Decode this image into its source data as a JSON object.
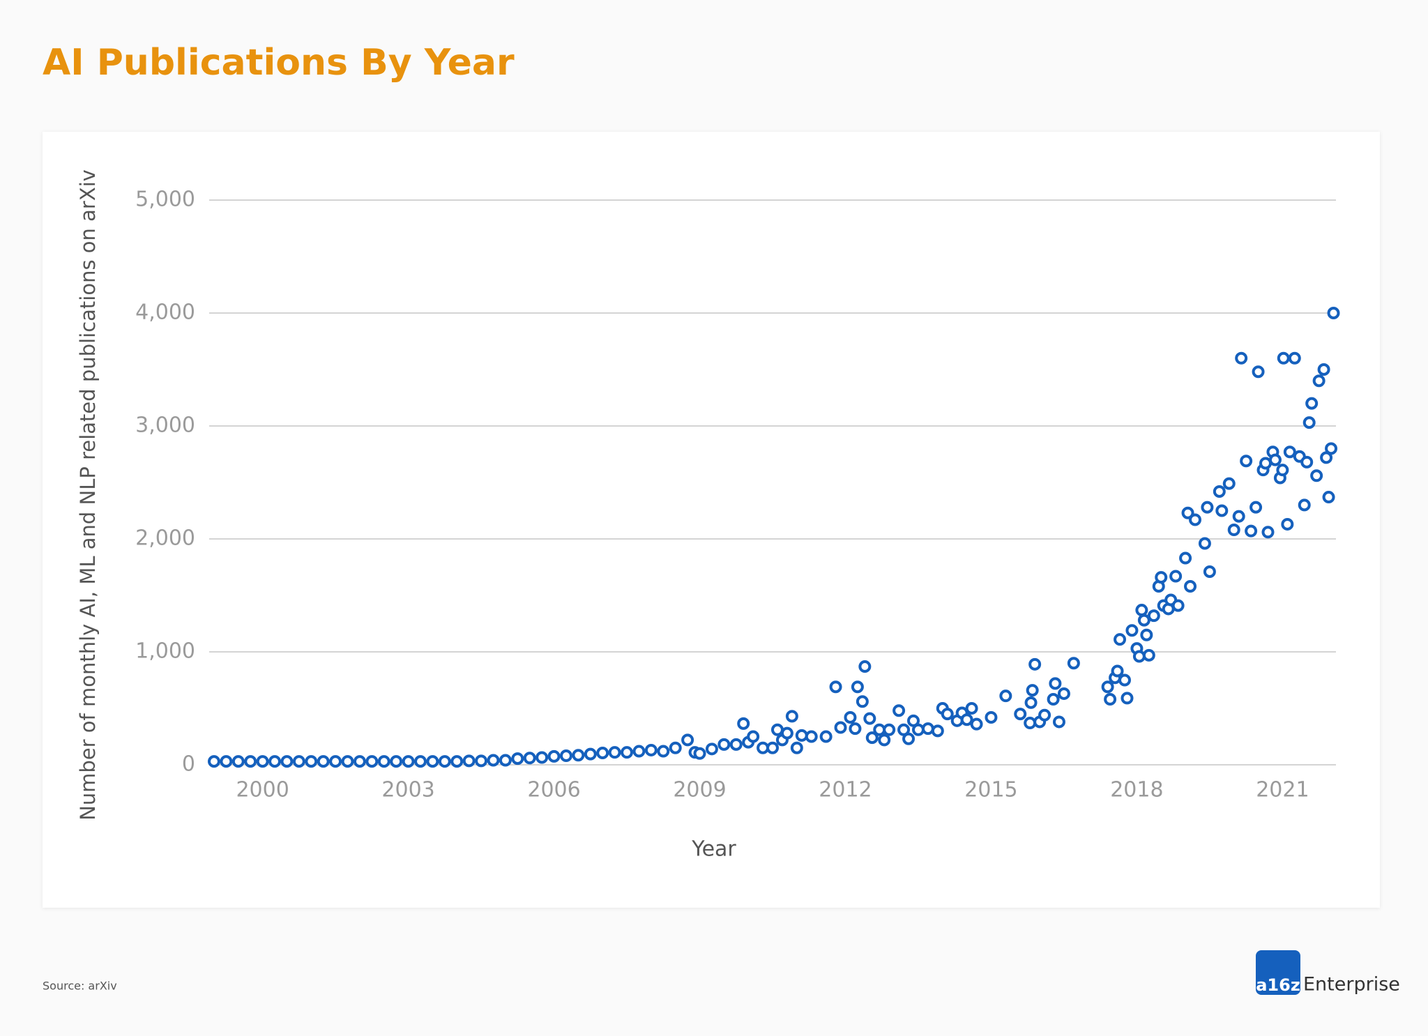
{
  "chart_data": {
    "type": "scatter",
    "title": "AI Publications By Year",
    "x_label": "Year",
    "y_label": "Number of monthly AI, ML and NLP related publications on arXiv",
    "color": "#1560bd",
    "grid": true,
    "xlim": [
      1998.9,
      2022.1
    ],
    "xticks": [
      2000,
      2003,
      2006,
      2009,
      2012,
      2015,
      2018,
      2021
    ],
    "ylim": [
      0,
      5000
    ],
    "yticks": [
      0,
      {
        "value": 1000,
        "label": "1,000"
      },
      {
        "value": 2000,
        "label": "2,000"
      },
      {
        "value": 3000,
        "label": "3,000"
      },
      {
        "value": 4000,
        "label": "4,000"
      },
      {
        "value": 5000,
        "label": "5,000"
      }
    ],
    "x": [
      1999.0,
      1999.25,
      1999.5,
      1999.75,
      2000.0,
      2000.25,
      2000.5,
      2000.75,
      2001.0,
      2001.25,
      2001.5,
      2001.75,
      2002.0,
      2002.25,
      2002.5,
      2002.75,
      2003.0,
      2003.25,
      2003.5,
      2003.75,
      2004.0,
      2004.25,
      2004.5,
      2004.75,
      2005.0,
      2005.25,
      2005.5,
      2005.75,
      2006.0,
      2006.25,
      2006.5,
      2006.75,
      2007.0,
      2007.25,
      2007.5,
      2007.75,
      2008.0,
      2008.25,
      2008.5,
      2008.75,
      2008.9,
      2009.0,
      2009.25,
      2009.5,
      2009.75,
      2009.9,
      2010.0,
      2010.1,
      2010.3,
      2010.5,
      2010.6,
      2010.7,
      2010.8,
      2010.9,
      2011.0,
      2011.1,
      2011.3,
      2011.6,
      2011.8,
      2011.9,
      2012.1,
      2012.2,
      2012.25,
      2012.35,
      2012.4,
      2012.5,
      2012.55,
      2012.7,
      2012.8,
      2012.9,
      2013.1,
      2013.2,
      2013.3,
      2013.4,
      2013.5,
      2013.7,
      2013.9,
      2014.0,
      2014.1,
      2014.3,
      2014.4,
      2014.5,
      2014.6,
      2014.7,
      2015.0,
      2015.3,
      2015.6,
      2015.8,
      2015.82,
      2015.85,
      2015.9,
      2016.0,
      2016.1,
      2016.28,
      2016.32,
      2016.4,
      2016.5,
      2016.7,
      2017.4,
      2017.45,
      2017.55,
      2017.6,
      2017.65,
      2017.75,
      2017.8,
      2017.9,
      2018.0,
      2018.05,
      2018.1,
      2018.15,
      2018.2,
      2018.25,
      2018.35,
      2018.45,
      2018.5,
      2018.55,
      2018.65,
      2018.7,
      2018.8,
      2018.85,
      2019.0,
      2019.05,
      2019.1,
      2019.2,
      2019.4,
      2019.45,
      2019.5,
      2019.7,
      2019.75,
      2019.9,
      2020.0,
      2020.1,
      2020.15,
      2020.25,
      2020.35,
      2020.45,
      2020.5,
      2020.6,
      2020.65,
      2020.7,
      2020.8,
      2020.85,
      2020.95,
      2021.0,
      2021.02,
      2021.1,
      2021.15,
      2021.25,
      2021.35,
      2021.45,
      2021.5,
      2021.55,
      2021.6,
      2021.7,
      2021.75,
      2021.85,
      2021.9,
      2021.95,
      2022.0,
      2022.05
    ],
    "values": [
      30,
      30,
      30,
      30,
      30,
      30,
      30,
      30,
      30,
      30,
      30,
      30,
      30,
      30,
      30,
      30,
      30,
      30,
      30,
      30,
      30,
      35,
      35,
      40,
      40,
      55,
      60,
      65,
      75,
      80,
      85,
      95,
      105,
      110,
      110,
      120,
      130,
      120,
      150,
      220,
      110,
      100,
      140,
      180,
      180,
      365,
      200,
      250,
      150,
      150,
      310,
      220,
      280,
      430,
      150,
      260,
      250,
      250,
      690,
      330,
      420,
      320,
      690,
      560,
      870,
      410,
      240,
      310,
      220,
      310,
      480,
      310,
      230,
      390,
      310,
      320,
      300,
      500,
      450,
      390,
      460,
      400,
      500,
      360,
      420,
      610,
      450,
      370,
      550,
      660,
      890,
      380,
      440,
      580,
      720,
      380,
      630,
      900,
      690,
      580,
      770,
      830,
      1110,
      750,
      590,
      1190,
      1030,
      960,
      1370,
      1280,
      1150,
      970,
      1320,
      1580,
      1660,
      1410,
      1380,
      1460,
      1670,
      1410,
      1830,
      2230,
      1580,
      2170,
      1960,
      2280,
      1710,
      2420,
      2250,
      2490,
      2080,
      2200,
      3600,
      2690,
      2070,
      2280,
      3480,
      2610,
      2670,
      2060,
      2770,
      2700,
      2540,
      2610,
      3600,
      2130,
      2770,
      3600,
      2730,
      2300,
      2680,
      3030,
      3200,
      2560,
      3400,
      3500,
      2720,
      2370,
      2800,
      4000
    ]
  },
  "footer": {
    "source": "Source: arXiv",
    "logo_mark": "a16z",
    "logo_text": "Enterprise"
  }
}
